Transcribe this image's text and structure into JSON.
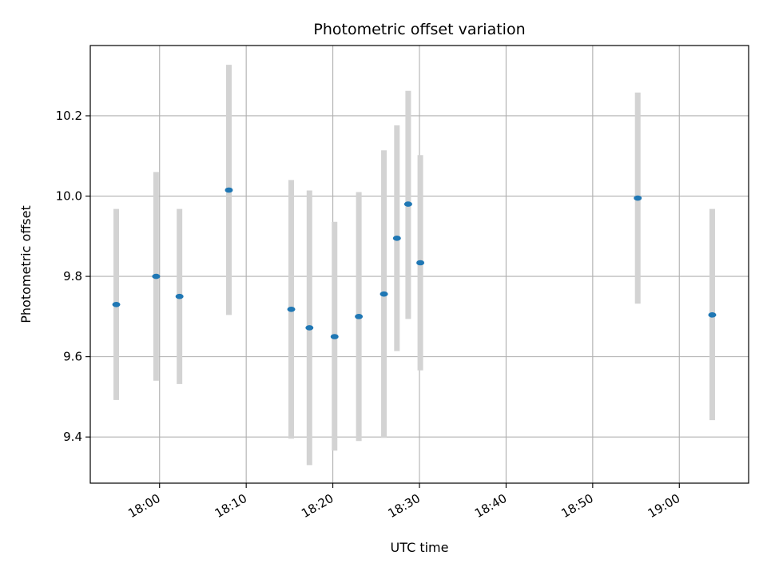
{
  "chart_data": {
    "type": "scatter",
    "title": "Photometric offset variation",
    "xlabel": "UTC time",
    "ylabel": "Photometric offset",
    "x_axis": {
      "kind": "time",
      "range": [
        "17:52",
        "19:08"
      ],
      "ticks": [
        "18:00",
        "18:10",
        "18:20",
        "18:30",
        "18:40",
        "18:50",
        "19:00"
      ]
    },
    "y_axis": {
      "range": [
        9.285,
        10.375
      ],
      "ticks": [
        9.4,
        9.6,
        9.8,
        10.0,
        10.2
      ],
      "tick_labels": [
        "9.4",
        "9.6",
        "9.8",
        "10.0",
        "10.2"
      ]
    },
    "grid": true,
    "colors": {
      "marker": "#1f77b4",
      "errorbar": "#d3d3d3",
      "grid": "#b0b0b0"
    },
    "points": [
      {
        "x": "17:55:00",
        "y": 9.73,
        "ylow": 9.492,
        "yhigh": 9.968
      },
      {
        "x": "17:59:36",
        "y": 9.8,
        "ylow": 9.54,
        "yhigh": 10.06
      },
      {
        "x": "18:02:18",
        "y": 9.75,
        "ylow": 9.532,
        "yhigh": 9.968
      },
      {
        "x": "18:08:00",
        "y": 10.015,
        "ylow": 9.704,
        "yhigh": 10.327
      },
      {
        "x": "18:15:12",
        "y": 9.718,
        "ylow": 9.396,
        "yhigh": 10.04
      },
      {
        "x": "18:17:18",
        "y": 9.672,
        "ylow": 9.33,
        "yhigh": 10.014
      },
      {
        "x": "18:20:12",
        "y": 9.65,
        "ylow": 9.366,
        "yhigh": 9.936
      },
      {
        "x": "18:23:00",
        "y": 9.7,
        "ylow": 9.39,
        "yhigh": 10.01
      },
      {
        "x": "18:25:54",
        "y": 9.756,
        "ylow": 9.398,
        "yhigh": 10.114
      },
      {
        "x": "18:27:24",
        "y": 9.895,
        "ylow": 9.614,
        "yhigh": 10.176
      },
      {
        "x": "18:28:42",
        "y": 9.98,
        "ylow": 9.694,
        "yhigh": 10.262
      },
      {
        "x": "18:30:06",
        "y": 9.834,
        "ylow": 9.566,
        "yhigh": 10.102
      },
      {
        "x": "18:55:12",
        "y": 9.995,
        "ylow": 9.732,
        "yhigh": 10.258
      },
      {
        "x": "19:03:48",
        "y": 9.704,
        "ylow": 9.442,
        "yhigh": 9.968
      }
    ]
  }
}
